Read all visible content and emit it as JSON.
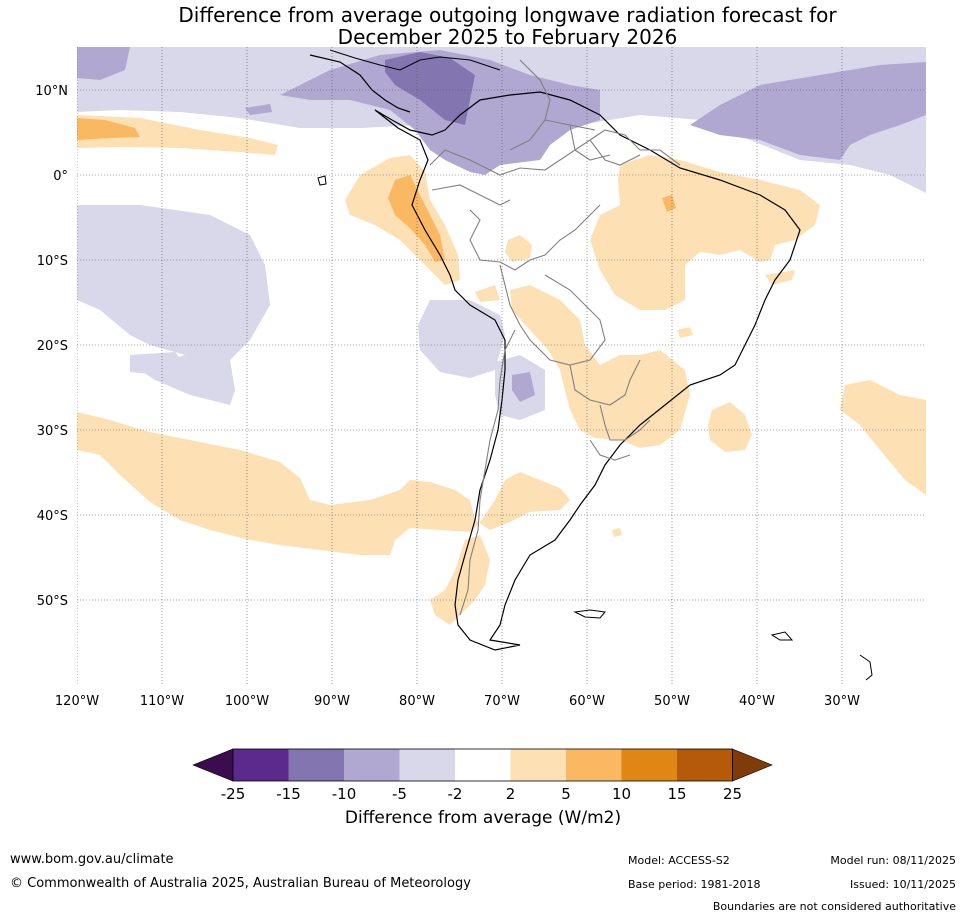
{
  "title": {
    "line1": "Difference from average outgoing longwave radiation forecast for",
    "line2": "December 2025 to February 2026"
  },
  "map": {
    "lat_labels": [
      "10°N",
      "0°",
      "10°S",
      "20°S",
      "30°S",
      "40°S",
      "50°S"
    ],
    "lat_values": [
      10,
      0,
      -10,
      -20,
      -30,
      -40,
      -50
    ],
    "lon_labels": [
      "120°W",
      "110°W",
      "100°W",
      "90°W",
      "80°W",
      "70°W",
      "60°W",
      "50°W",
      "40°W",
      "30°W"
    ],
    "lon_values": [
      -120,
      -110,
      -100,
      -90,
      -80,
      -70,
      -60,
      -50,
      -40,
      -30
    ],
    "extent": {
      "lon_min": -120,
      "lon_max": -20,
      "lat_min": -60,
      "lat_max": 15
    },
    "colors": {
      "neg_15_10": "#b0a8d0",
      "neg_10_5": "#b0a8d0",
      "neg_5_2": "#d8d8ea",
      "pos_2_5": "#fde0b4",
      "pos_5_10": "#fbb862",
      "land": "#ffffff",
      "coast": "#000000",
      "border": "#808080"
    }
  },
  "colorbar": {
    "ticks": [
      "-25",
      "-15",
      "-10",
      "-5",
      "-2",
      "2",
      "5",
      "10",
      "15",
      "25"
    ],
    "colors": [
      "#3b0d4e",
      "#5c2a8c",
      "#8376b0",
      "#b0a8d0",
      "#d8d8ea",
      "#ffffff",
      "#fde0b4",
      "#fbb862",
      "#e08614",
      "#b45a0a",
      "#7f3b08"
    ],
    "title": "Difference from average (W/m2)"
  },
  "footer": {
    "website": "www.bom.gov.au/climate",
    "copyright": "© Commonwealth of Australia 2025, Australian Bureau of Meteorology",
    "model": "Model: ACCESS-S2",
    "base_period": "Base period: 1981-2018",
    "model_run": "Model run: 08/11/2025",
    "issued": "Issued: 10/11/2025",
    "disclaimer": "Boundaries are not considered authoritative"
  }
}
